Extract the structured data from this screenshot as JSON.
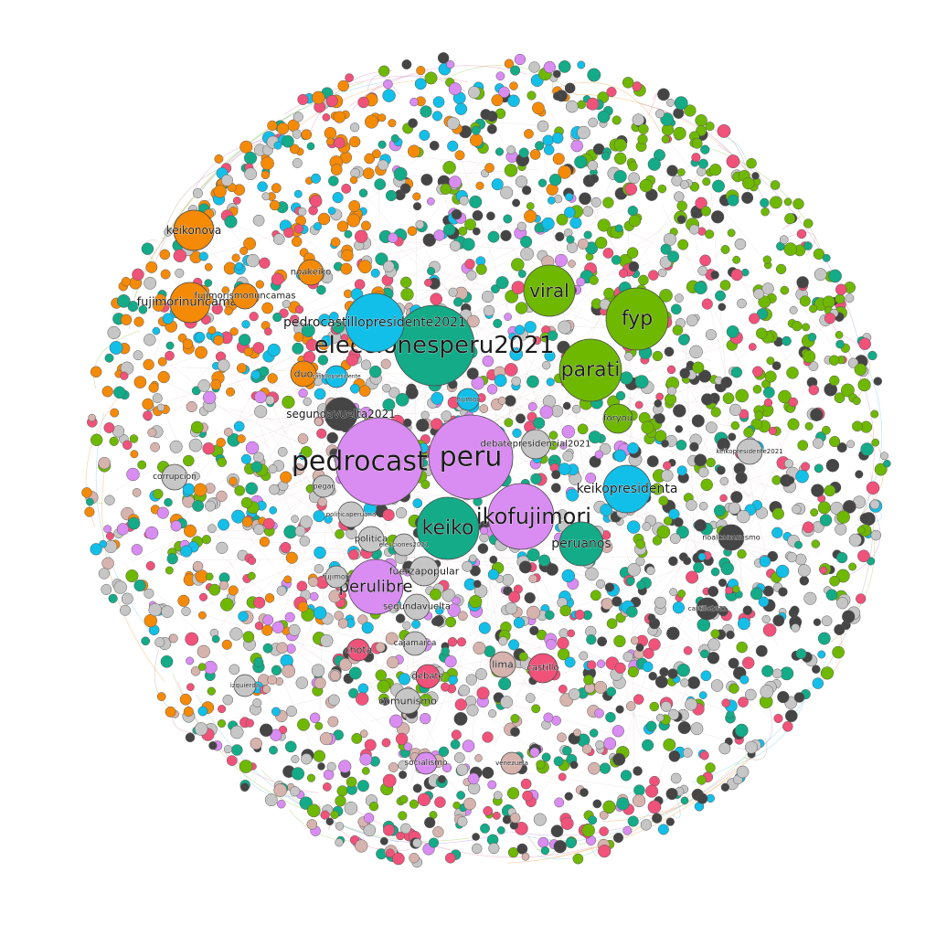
{
  "colors": {
    "orange": "#f58a07",
    "cyan": "#12bfe8",
    "green": "#6fb800",
    "teal": "#13ab88",
    "violet": "#d98cf2",
    "pink": "#f0527a",
    "gray": "#c6c6c6",
    "dark": "#454545",
    "rose": "#d6b3ad"
  },
  "labeled_nodes": [
    {
      "label": "pedrocastillo",
      "color": "violet",
      "size": "xl"
    },
    {
      "label": "peru",
      "color": "violet",
      "size": "xl"
    },
    {
      "label": "keikofujimori",
      "color": "violet",
      "size": "l"
    },
    {
      "label": "eleccionesperu2021",
      "color": "teal",
      "size": "l"
    },
    {
      "label": "keiko",
      "color": "teal",
      "size": "l"
    },
    {
      "label": "fyp",
      "color": "green",
      "size": "l"
    },
    {
      "label": "parati",
      "color": "green",
      "size": "l"
    },
    {
      "label": "viral",
      "color": "green",
      "size": "m"
    },
    {
      "label": "pedrocastillopresidente2021",
      "color": "cyan",
      "size": "m"
    },
    {
      "label": "keikopresidenta",
      "color": "cyan",
      "size": "m"
    },
    {
      "label": "peruanos",
      "color": "teal",
      "size": "m"
    },
    {
      "label": "perulibre",
      "color": "violet",
      "size": "m"
    },
    {
      "label": "keikonova",
      "color": "orange",
      "size": "m"
    },
    {
      "label": "fujimorinuncamas",
      "color": "orange",
      "size": "m"
    },
    {
      "label": "fujimorismonuncamas",
      "color": "orange",
      "size": "s"
    },
    {
      "label": "segundavuelta2021",
      "color": "dark",
      "size": "s"
    },
    {
      "label": "debatepresidencial2021",
      "color": "gray",
      "size": "s"
    },
    {
      "label": "foryou",
      "color": "green",
      "size": "s"
    },
    {
      "label": "duo",
      "color": "orange",
      "size": "s"
    },
    {
      "label": "noakeiko",
      "color": "orange",
      "size": "s"
    },
    {
      "label": "fuerzapopular",
      "color": "gray",
      "size": "s"
    },
    {
      "label": "politica",
      "color": "gray",
      "size": "s"
    },
    {
      "label": "segundavuelta",
      "color": "gray",
      "size": "s"
    },
    {
      "label": "chota",
      "color": "pink",
      "size": "s"
    },
    {
      "label": "cajamarca",
      "color": "gray",
      "size": "s"
    },
    {
      "label": "debate",
      "color": "pink",
      "size": "s"
    },
    {
      "label": "comunismo",
      "color": "gray",
      "size": "s"
    },
    {
      "label": "lima",
      "color": "rose",
      "size": "s"
    },
    {
      "label": "castillo",
      "color": "pink",
      "size": "s"
    },
    {
      "label": "socialismo",
      "color": "violet",
      "size": "s"
    },
    {
      "label": "corrupcion",
      "color": "gray",
      "size": "s"
    },
    {
      "label": "pegar",
      "color": "gray",
      "size": "s"
    },
    {
      "label": "fujimori",
      "color": "gray",
      "size": "s"
    },
    {
      "label": "politicaperuana",
      "color": "gray",
      "size": "s"
    },
    {
      "label": "elecciones2021",
      "color": "gray",
      "size": "s"
    },
    {
      "label": "keikopresidente2021",
      "color": "gray",
      "size": "s"
    },
    {
      "label": "noalcomunismo",
      "color": "dark",
      "size": "s"
    },
    {
      "label": "humor",
      "color": "cyan",
      "size": "s"
    },
    {
      "label": "castillopresidente",
      "color": "cyan",
      "size": "s"
    },
    {
      "label": "venezuela",
      "color": "rose",
      "size": "s"
    },
    {
      "label": "izquierda",
      "color": "gray",
      "size": "s"
    },
    {
      "label": "castillo2021",
      "color": "dark",
      "size": "s"
    }
  ]
}
